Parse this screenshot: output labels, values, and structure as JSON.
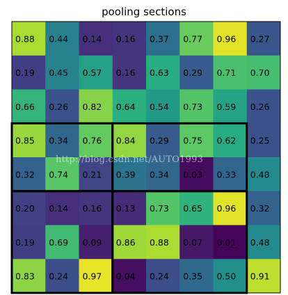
{
  "chart_data": {
    "type": "heatmap",
    "title": "pooling sections",
    "colormap": "viridis",
    "value_range": [
      0.0,
      1.0
    ],
    "rows": [
      [
        "0.88",
        "0.44",
        "0.14",
        "0.16",
        "0.37",
        "0.77",
        "0.96",
        "0.27"
      ],
      [
        "0.19",
        "0.45",
        "0.57",
        "0.16",
        "0.63",
        "0.29",
        "0.71",
        "0.70"
      ],
      [
        "0.66",
        "0.26",
        "0.82",
        "0.64",
        "0.54",
        "0.73",
        "0.59",
        "0.26"
      ],
      [
        "0.85",
        "0.34",
        "0.76",
        "0.84",
        "0.29",
        "0.75",
        "0.62",
        "0.25"
      ],
      [
        "0.32",
        "0.74",
        "0.21",
        "0.39",
        "0.34",
        "0.03",
        "0.33",
        "0.48"
      ],
      [
        "0.20",
        "0.14",
        "0.16",
        "0.13",
        "0.73",
        "0.65",
        "0.96",
        "0.32"
      ],
      [
        "0.19",
        "0.69",
        "0.09",
        "0.86",
        "0.88",
        "0.07",
        "0.01",
        "0.48"
      ],
      [
        "0.83",
        "0.24",
        "0.97",
        "0.04",
        "0.24",
        "0.35",
        "0.50",
        "0.91"
      ]
    ],
    "sections": [
      {
        "row_start": 3,
        "row_end": 5,
        "col_start": 0,
        "col_end": 3
      },
      {
        "row_start": 3,
        "row_end": 5,
        "col_start": 3,
        "col_end": 7
      },
      {
        "row_start": 5,
        "row_end": 8,
        "col_start": 0,
        "col_end": 3
      },
      {
        "row_start": 5,
        "row_end": 8,
        "col_start": 3,
        "col_end": 7
      }
    ],
    "section_color": "#000000"
  },
  "watermark": "http://blog.csdn.net/AUTO1993"
}
